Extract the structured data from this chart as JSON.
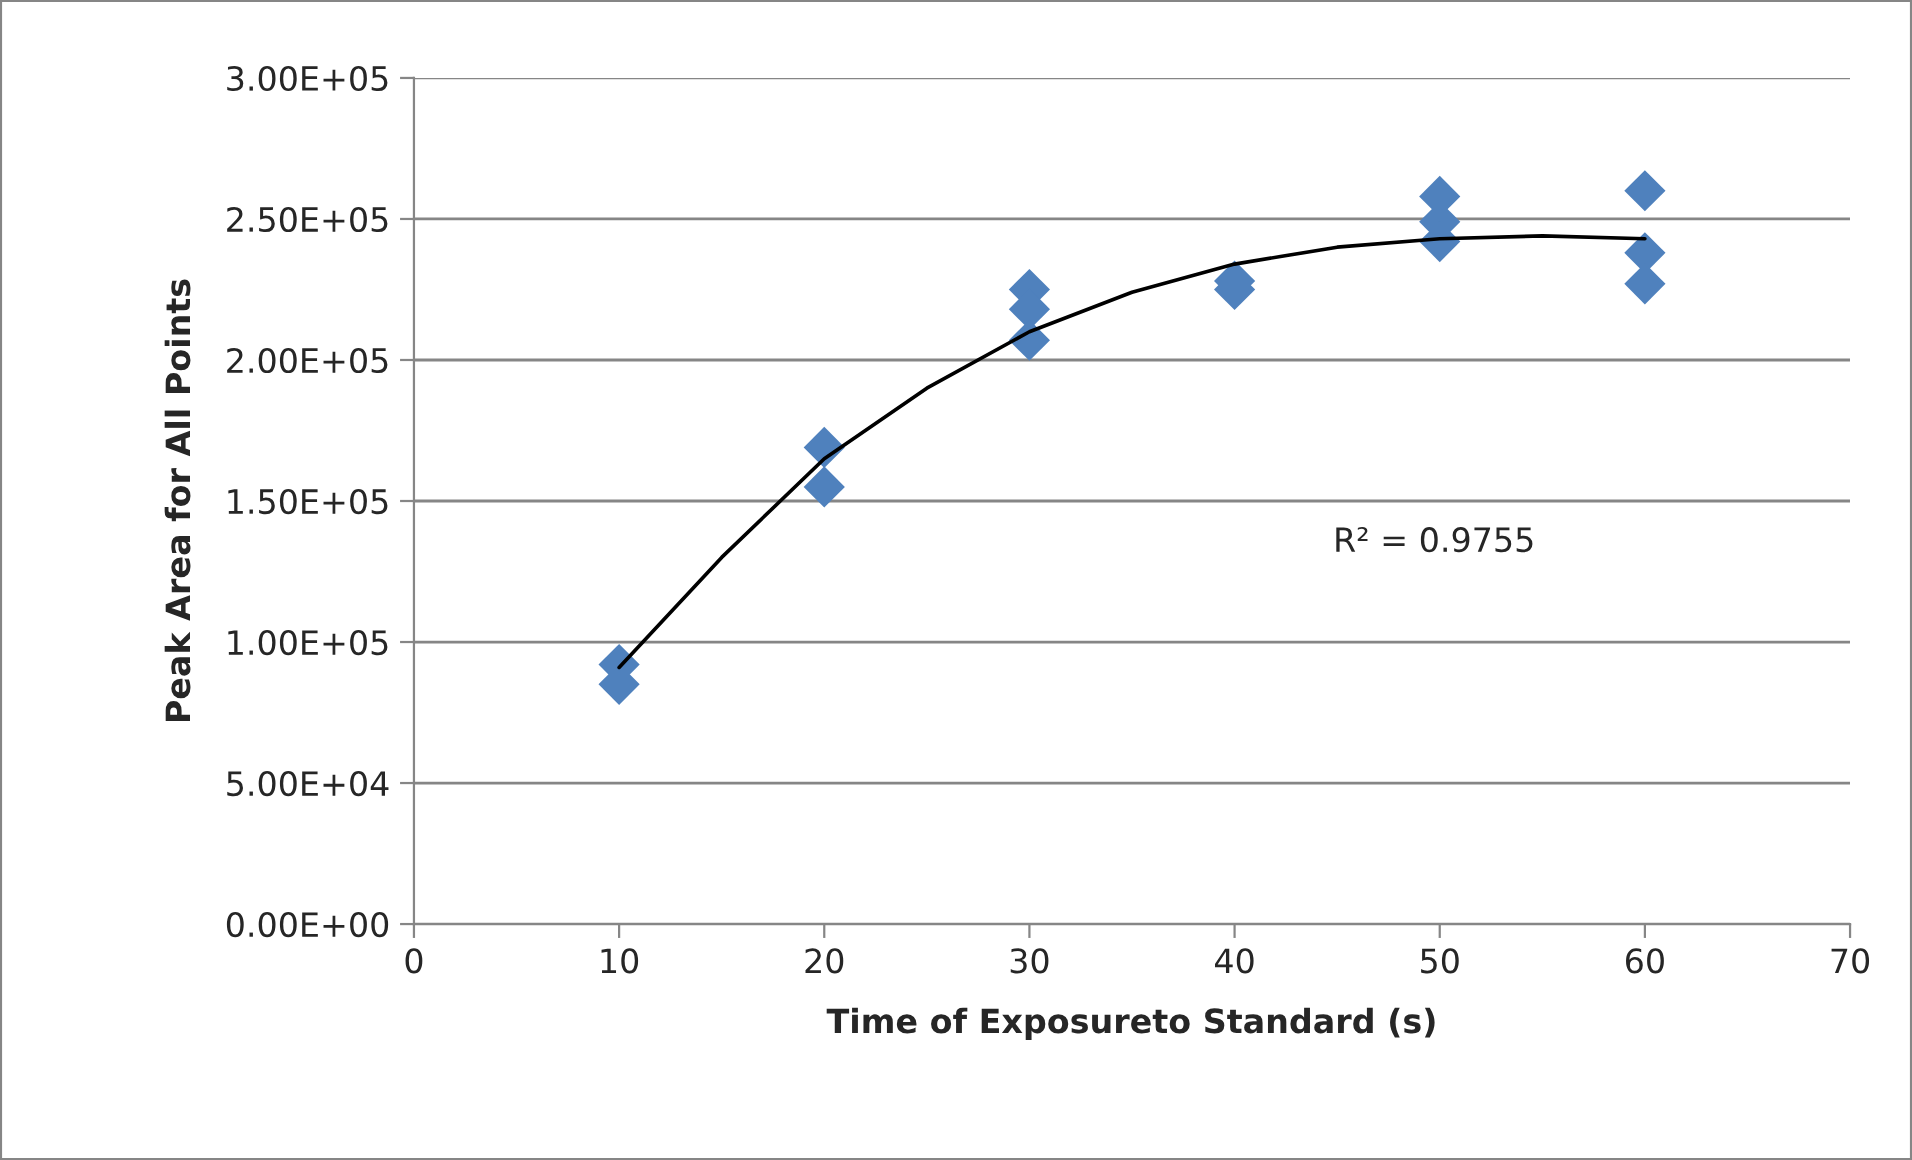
{
  "chart_data": {
    "type": "scatter",
    "xlabel": "Time of Exposureto Standard (s)",
    "ylabel": "Peak Area for All Points",
    "xlim": [
      0,
      70
    ],
    "xticks": [
      0,
      10,
      20,
      30,
      40,
      50,
      60,
      70
    ],
    "ylim": [
      0,
      300000
    ],
    "yticks": [
      {
        "value": 0,
        "label": "0.00E+00"
      },
      {
        "value": 50000,
        "label": "5.00E+04"
      },
      {
        "value": 100000,
        "label": "1.00E+05"
      },
      {
        "value": 150000,
        "label": "1.50E+05"
      },
      {
        "value": 200000,
        "label": "2.00E+05"
      },
      {
        "value": 250000,
        "label": "2.50E+05"
      },
      {
        "value": 300000,
        "label": "3.00E+05"
      }
    ],
    "grid": "y",
    "legend": false,
    "marker": "diamond",
    "annotations": [
      "R² = 0.9755"
    ],
    "series": [
      {
        "color": "#4f81bd",
        "x": [
          10,
          10,
          20,
          20,
          30,
          30,
          30,
          40,
          40,
          50,
          50,
          50,
          60,
          60,
          60
        ],
        "values": [
          92000,
          85000,
          169000,
          155000,
          225000,
          218000,
          207000,
          228000,
          225000,
          258000,
          249000,
          242000,
          260000,
          238000,
          227000
        ]
      },
      {
        "type": "line",
        "color": "#000000",
        "marker": "none",
        "x": [
          10,
          15,
          20,
          25,
          30,
          35,
          40,
          45,
          50,
          55,
          60
        ],
        "values": [
          91000,
          130000,
          165000,
          190000,
          210000,
          224000,
          234000,
          240000,
          243000,
          244000,
          243000
        ]
      }
    ]
  }
}
